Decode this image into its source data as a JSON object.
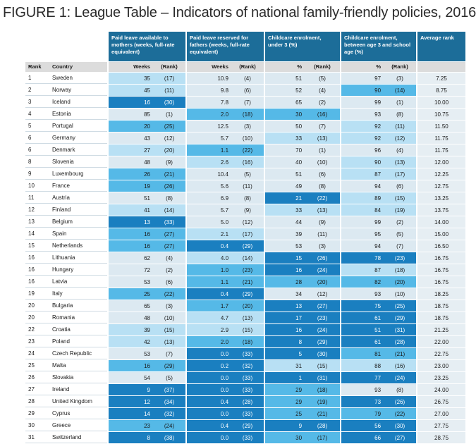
{
  "title": "FIGURE 1: League Table – Indicators of national family-friendly policies, 2016",
  "headers": {
    "groups": [
      "Paid leave available to mothers (weeks, full-rate equivalent)",
      "Paid leave reserved for fathers (weeks, full-rate equivalent)",
      "Childcare enrolment, under 3 (%)",
      "Childcare enrolment, between age 3 and school age (%)",
      "Average rank"
    ],
    "sub": [
      "Rank",
      "Country",
      "Weeks",
      "(Rank)",
      "Weeks",
      "(Rank)",
      "%",
      "(Rank)",
      "%",
      "(Rank)",
      ""
    ]
  },
  "colors": {
    "header": "#1c6d99",
    "subheader": "#dcdcdc",
    "level0": "#dce9f1",
    "level1": "#b8e0f4",
    "level2": "#55b9e7",
    "level3": "#1a7fc0"
  },
  "rows": [
    {
      "rank": "1",
      "country": "Sweden",
      "mw": "35",
      "mr": "(17)",
      "fw": "10.9",
      "fr": "(4)",
      "u3": "51",
      "u3r": "(5)",
      "a3": "97",
      "a3r": "(3)",
      "avg": "7.25",
      "cc": [
        1,
        0,
        0,
        0
      ]
    },
    {
      "rank": "2",
      "country": "Norway",
      "mw": "45",
      "mr": "(11)",
      "fw": "9.8",
      "fr": "(6)",
      "u3": "52",
      "u3r": "(4)",
      "a3": "90",
      "a3r": "(14)",
      "avg": "8.75",
      "cc": [
        1,
        0,
        0,
        2
      ]
    },
    {
      "rank": "3",
      "country": "Iceland",
      "mw": "16",
      "mr": "(30)",
      "fw": "7.8",
      "fr": "(7)",
      "u3": "65",
      "u3r": "(2)",
      "a3": "99",
      "a3r": "(1)",
      "avg": "10.00",
      "cc": [
        3,
        0,
        0,
        0
      ]
    },
    {
      "rank": "4",
      "country": "Estonia",
      "mw": "85",
      "mr": "(1)",
      "fw": "2.0",
      "fr": "(18)",
      "u3": "30",
      "u3r": "(16)",
      "a3": "93",
      "a3r": "(8)",
      "avg": "10.75",
      "cc": [
        0,
        2,
        2,
        0
      ]
    },
    {
      "rank": "5",
      "country": "Portugal",
      "mw": "20",
      "mr": "(25)",
      "fw": "12.5",
      "fr": "(3)",
      "u3": "50",
      "u3r": "(7)",
      "a3": "92",
      "a3r": "(11)",
      "avg": "11.50",
      "cc": [
        2,
        0,
        0,
        1
      ]
    },
    {
      "rank": "6",
      "country": "Germany",
      "mw": "43",
      "mr": "(12)",
      "fw": "5.7",
      "fr": "(10)",
      "u3": "33",
      "u3r": "(13)",
      "a3": "92",
      "a3r": "(12)",
      "avg": "11.75",
      "cc": [
        0,
        0,
        1,
        1
      ]
    },
    {
      "rank": "6",
      "country": "Denmark",
      "mw": "27",
      "mr": "(20)",
      "fw": "1.1",
      "fr": "(22)",
      "u3": "70",
      "u3r": "(1)",
      "a3": "96",
      "a3r": "(4)",
      "avg": "11.75",
      "cc": [
        1,
        2,
        0,
        0
      ]
    },
    {
      "rank": "8",
      "country": "Slovenia",
      "mw": "48",
      "mr": "(9)",
      "fw": "2.6",
      "fr": "(16)",
      "u3": "40",
      "u3r": "(10)",
      "a3": "90",
      "a3r": "(13)",
      "avg": "12.00",
      "cc": [
        0,
        1,
        0,
        1
      ]
    },
    {
      "rank": "9",
      "country": "Luxembourg",
      "mw": "26",
      "mr": "(21)",
      "fw": "10.4",
      "fr": "(5)",
      "u3": "51",
      "u3r": "(6)",
      "a3": "87",
      "a3r": "(17)",
      "avg": "12.25",
      "cc": [
        2,
        0,
        0,
        1
      ]
    },
    {
      "rank": "10",
      "country": "France",
      "mw": "19",
      "mr": "(26)",
      "fw": "5.6",
      "fr": "(11)",
      "u3": "49",
      "u3r": "(8)",
      "a3": "94",
      "a3r": "(6)",
      "avg": "12.75",
      "cc": [
        2,
        0,
        0,
        0
      ]
    },
    {
      "rank": "11",
      "country": "Austria",
      "mw": "51",
      "mr": "(8)",
      "fw": "6.9",
      "fr": "(8)",
      "u3": "21",
      "u3r": "(22)",
      "a3": "89",
      "a3r": "(15)",
      "avg": "13.25",
      "cc": [
        0,
        0,
        3,
        1
      ]
    },
    {
      "rank": "12",
      "country": "Finland",
      "mw": "41",
      "mr": "(14)",
      "fw": "5.7",
      "fr": "(9)",
      "u3": "33",
      "u3r": "(13)",
      "a3": "84",
      "a3r": "(19)",
      "avg": "13.75",
      "cc": [
        1,
        0,
        1,
        1
      ]
    },
    {
      "rank": "13",
      "country": "Belgium",
      "mw": "13",
      "mr": "(33)",
      "fw": "5.0",
      "fr": "(12)",
      "u3": "44",
      "u3r": "(9)",
      "a3": "99",
      "a3r": "(2)",
      "avg": "14.00",
      "cc": [
        3,
        0,
        0,
        0
      ]
    },
    {
      "rank": "14",
      "country": "Spain",
      "mw": "16",
      "mr": "(27)",
      "fw": "2.1",
      "fr": "(17)",
      "u3": "39",
      "u3r": "(11)",
      "a3": "95",
      "a3r": "(5)",
      "avg": "15.00",
      "cc": [
        2,
        1,
        0,
        0
      ]
    },
    {
      "rank": "15",
      "country": "Netherlands",
      "mw": "16",
      "mr": "(27)",
      "fw": "0.4",
      "fr": "(29)",
      "u3": "53",
      "u3r": "(3)",
      "a3": "94",
      "a3r": "(7)",
      "avg": "16.50",
      "cc": [
        2,
        3,
        0,
        0
      ]
    },
    {
      "rank": "16",
      "country": "Lithuania",
      "mw": "62",
      "mr": "(4)",
      "fw": "4.0",
      "fr": "(14)",
      "u3": "15",
      "u3r": "(26)",
      "a3": "78",
      "a3r": "(23)",
      "avg": "16.75",
      "cc": [
        0,
        1,
        3,
        3
      ]
    },
    {
      "rank": "16",
      "country": "Hungary",
      "mw": "72",
      "mr": "(2)",
      "fw": "1.0",
      "fr": "(23)",
      "u3": "16",
      "u3r": "(24)",
      "a3": "87",
      "a3r": "(18)",
      "avg": "16.75",
      "cc": [
        0,
        2,
        3,
        1
      ]
    },
    {
      "rank": "16",
      "country": "Latvia",
      "mw": "53",
      "mr": "(6)",
      "fw": "1.1",
      "fr": "(21)",
      "u3": "28",
      "u3r": "(20)",
      "a3": "82",
      "a3r": "(20)",
      "avg": "16.75",
      "cc": [
        0,
        2,
        2,
        2
      ]
    },
    {
      "rank": "19",
      "country": "Italy",
      "mw": "25",
      "mr": "(22)",
      "fw": "0.4",
      "fr": "(29)",
      "u3": "34",
      "u3r": "(12)",
      "a3": "93",
      "a3r": "(10)",
      "avg": "18.25",
      "cc": [
        2,
        3,
        0,
        0
      ]
    },
    {
      "rank": "20",
      "country": "Bulgaria",
      "mw": "65",
      "mr": "(3)",
      "fw": "1.7",
      "fr": "(20)",
      "u3": "13",
      "u3r": "(27)",
      "a3": "75",
      "a3r": "(25)",
      "avg": "18.75",
      "cc": [
        0,
        2,
        3,
        3
      ]
    },
    {
      "rank": "20",
      "country": "Romania",
      "mw": "48",
      "mr": "(10)",
      "fw": "4.7",
      "fr": "(13)",
      "u3": "17",
      "u3r": "(23)",
      "a3": "61",
      "a3r": "(29)",
      "avg": "18.75",
      "cc": [
        0,
        1,
        3,
        3
      ]
    },
    {
      "rank": "22",
      "country": "Croatia",
      "mw": "39",
      "mr": "(15)",
      "fw": "2.9",
      "fr": "(15)",
      "u3": "16",
      "u3r": "(24)",
      "a3": "51",
      "a3r": "(31)",
      "avg": "21.25",
      "cc": [
        1,
        1,
        3,
        3
      ]
    },
    {
      "rank": "23",
      "country": "Poland",
      "mw": "42",
      "mr": "(13)",
      "fw": "2.0",
      "fr": "(18)",
      "u3": "8",
      "u3r": "(29)",
      "a3": "61",
      "a3r": "(28)",
      "avg": "22.00",
      "cc": [
        1,
        2,
        3,
        3
      ]
    },
    {
      "rank": "24",
      "country": "Czech Republic",
      "mw": "53",
      "mr": "(7)",
      "fw": "0.0",
      "fr": "(33)",
      "u3": "5",
      "u3r": "(30)",
      "a3": "81",
      "a3r": "(21)",
      "avg": "22.75",
      "cc": [
        0,
        3,
        3,
        2
      ]
    },
    {
      "rank": "25",
      "country": "Malta",
      "mw": "16",
      "mr": "(29)",
      "fw": "0.2",
      "fr": "(32)",
      "u3": "31",
      "u3r": "(15)",
      "a3": "88",
      "a3r": "(16)",
      "avg": "23.00",
      "cc": [
        2,
        3,
        1,
        1
      ]
    },
    {
      "rank": "26",
      "country": "Slovakia",
      "mw": "54",
      "mr": "(5)",
      "fw": "0.0",
      "fr": "(33)",
      "u3": "1",
      "u3r": "(31)",
      "a3": "77",
      "a3r": "(24)",
      "avg": "23.25",
      "cc": [
        0,
        3,
        3,
        3
      ]
    },
    {
      "rank": "27",
      "country": "Ireland",
      "mw": "9",
      "mr": "(37)",
      "fw": "0.0",
      "fr": "(33)",
      "u3": "29",
      "u3r": "(18)",
      "a3": "93",
      "a3r": "(8)",
      "avg": "24.00",
      "cc": [
        3,
        3,
        2,
        0
      ]
    },
    {
      "rank": "28",
      "country": "United Kingdom",
      "mw": "12",
      "mr": "(34)",
      "fw": "0.4",
      "fr": "(28)",
      "u3": "29",
      "u3r": "(19)",
      "a3": "73",
      "a3r": "(26)",
      "avg": "26.75",
      "cc": [
        3,
        3,
        2,
        3
      ]
    },
    {
      "rank": "29",
      "country": "Cyprus",
      "mw": "14",
      "mr": "(32)",
      "fw": "0.0",
      "fr": "(33)",
      "u3": "25",
      "u3r": "(21)",
      "a3": "79",
      "a3r": "(22)",
      "avg": "27.00",
      "cc": [
        3,
        3,
        2,
        2
      ]
    },
    {
      "rank": "30",
      "country": "Greece",
      "mw": "23",
      "mr": "(24)",
      "fw": "0.4",
      "fr": "(29)",
      "u3": "9",
      "u3r": "(28)",
      "a3": "56",
      "a3r": "(30)",
      "avg": "27.75",
      "cc": [
        2,
        3,
        3,
        3
      ]
    },
    {
      "rank": "31",
      "country": "Switzerland",
      "mw": "8",
      "mr": "(38)",
      "fw": "0.0",
      "fr": "(33)",
      "u3": "30",
      "u3r": "(17)",
      "a3": "66",
      "a3r": "(27)",
      "avg": "28.75",
      "cc": [
        3,
        3,
        2,
        3
      ]
    }
  ]
}
